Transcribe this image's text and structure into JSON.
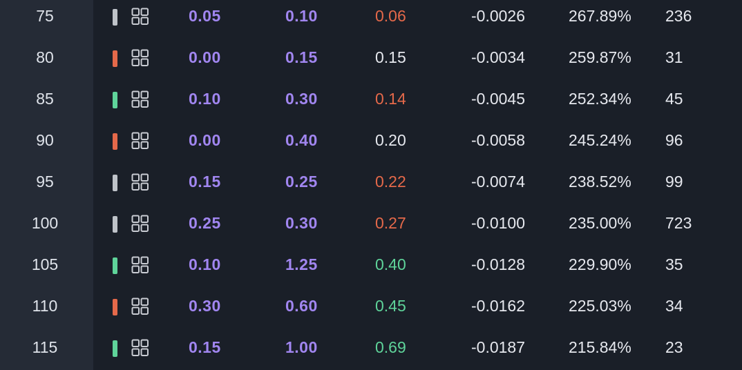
{
  "colors": {
    "background": "#1a1f28",
    "strike_column_bg": "#252b36",
    "bid_ask": "#a186f0",
    "neutral": "#e6e8ee",
    "red": "#e5694a",
    "green": "#5fd49a",
    "gray_marker": "#bfc3c9"
  },
  "rows": [
    {
      "strike": "75",
      "marker": "gray",
      "icon": "grid-icon",
      "bid": "0.05",
      "ask": "0.10",
      "last": "0.06",
      "last_color": "red",
      "change": "-0.0026",
      "iv": "267.89%",
      "volume": "236"
    },
    {
      "strike": "80",
      "marker": "red",
      "icon": "grid-icon",
      "bid": "0.00",
      "ask": "0.15",
      "last": "0.15",
      "last_color": "neutral",
      "change": "-0.0034",
      "iv": "259.87%",
      "volume": "31"
    },
    {
      "strike": "85",
      "marker": "green",
      "icon": "grid-icon",
      "bid": "0.10",
      "ask": "0.30",
      "last": "0.14",
      "last_color": "red",
      "change": "-0.0045",
      "iv": "252.34%",
      "volume": "45"
    },
    {
      "strike": "90",
      "marker": "red",
      "icon": "grid-icon",
      "bid": "0.00",
      "ask": "0.40",
      "last": "0.20",
      "last_color": "neutral",
      "change": "-0.0058",
      "iv": "245.24%",
      "volume": "96"
    },
    {
      "strike": "95",
      "marker": "gray",
      "icon": "grid-icon",
      "bid": "0.15",
      "ask": "0.25",
      "last": "0.22",
      "last_color": "red",
      "change": "-0.0074",
      "iv": "238.52%",
      "volume": "99"
    },
    {
      "strike": "100",
      "marker": "gray",
      "icon": "grid-icon",
      "bid": "0.25",
      "ask": "0.30",
      "last": "0.27",
      "last_color": "red",
      "change": "-0.0100",
      "iv": "235.00%",
      "volume": "723"
    },
    {
      "strike": "105",
      "marker": "green",
      "icon": "grid-icon",
      "bid": "0.10",
      "ask": "1.25",
      "last": "0.40",
      "last_color": "green",
      "change": "-0.0128",
      "iv": "229.90%",
      "volume": "35"
    },
    {
      "strike": "110",
      "marker": "red",
      "icon": "grid-icon",
      "bid": "0.30",
      "ask": "0.60",
      "last": "0.45",
      "last_color": "green",
      "change": "-0.0162",
      "iv": "225.03%",
      "volume": "34"
    },
    {
      "strike": "115",
      "marker": "green",
      "icon": "grid-icon",
      "bid": "0.15",
      "ask": "1.00",
      "last": "0.69",
      "last_color": "green",
      "change": "-0.0187",
      "iv": "215.84%",
      "volume": "23"
    }
  ]
}
